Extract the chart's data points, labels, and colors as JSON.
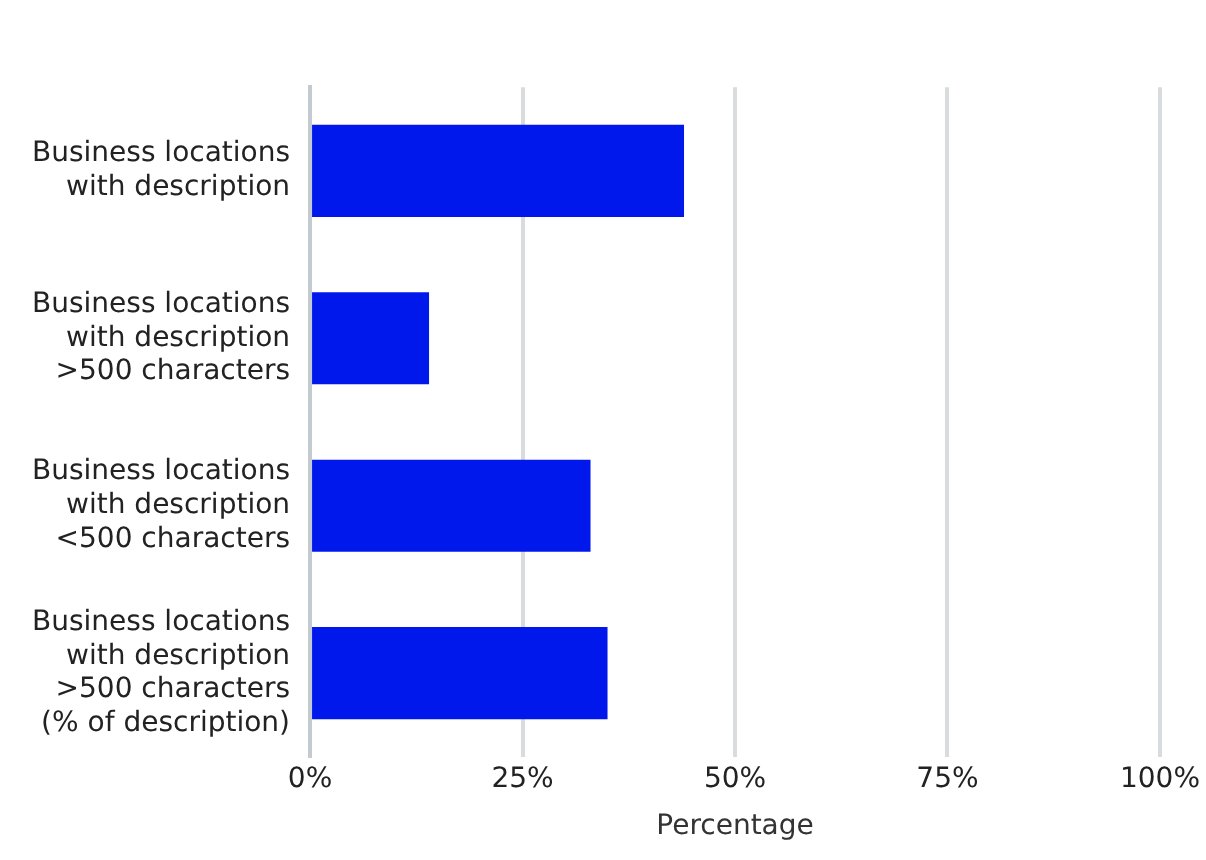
{
  "chart_data": {
    "type": "bar",
    "orientation": "horizontal",
    "categories": [
      "Business locations\nwith description",
      "Business locations\nwith description\n>500 characters",
      "Business locations\nwith description\n<500 characters",
      "Business locations\nwith description\n>500 characters\n(% of description)"
    ],
    "values": [
      44,
      14,
      33,
      35
    ],
    "color": "#0018eb",
    "xlabel": "Percentage",
    "xlim": [
      0,
      100
    ],
    "xticks": [
      {
        "value": 0,
        "label": "0%"
      },
      {
        "value": 25,
        "label": "25%"
      },
      {
        "value": 50,
        "label": "50%"
      },
      {
        "value": 75,
        "label": "75%"
      },
      {
        "value": 100,
        "label": "100%"
      }
    ],
    "grid": "x",
    "legend": false
  }
}
